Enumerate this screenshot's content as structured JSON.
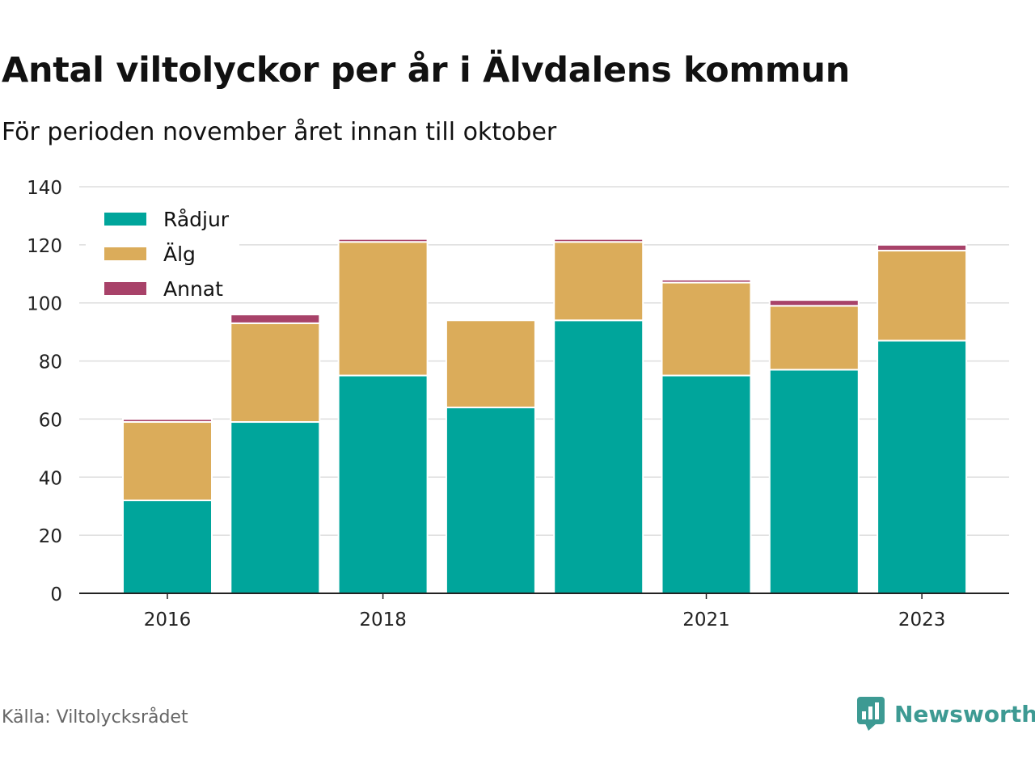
{
  "title": "Antal viltolyckor per år i Älvdalens kommun",
  "subtitle": "För perioden november året innan till oktober",
  "source": "Källa: Viltolycksrådet",
  "brand": {
    "name": "Newsworthy",
    "icon": "newsworthy-logo-icon",
    "color": "#3d9a93"
  },
  "chart_data": {
    "type": "bar",
    "stacked": true,
    "categories": [
      "2016",
      "2017",
      "2018",
      "2019",
      "2020",
      "2021",
      "2022",
      "2023"
    ],
    "x_tick_labels": [
      "2016",
      "",
      "2018",
      "",
      "",
      "2021",
      "",
      "2023"
    ],
    "series": [
      {
        "name": "Rådjur",
        "color": "#00a59b",
        "values": [
          32,
          59,
          75,
          64,
          94,
          75,
          77,
          87
        ]
      },
      {
        "name": "Älg",
        "color": "#dbac5a",
        "values": [
          27,
          34,
          46,
          30,
          27,
          32,
          22,
          31
        ]
      },
      {
        "name": "Annat",
        "color": "#a84269",
        "values": [
          1,
          3,
          1,
          0,
          1,
          1,
          2,
          2
        ]
      }
    ],
    "ylim": [
      0,
      140
    ],
    "yticks": [
      0,
      20,
      40,
      60,
      80,
      100,
      120,
      140
    ],
    "grid": true,
    "legend": "top-left",
    "xlabel": "",
    "ylabel": ""
  }
}
